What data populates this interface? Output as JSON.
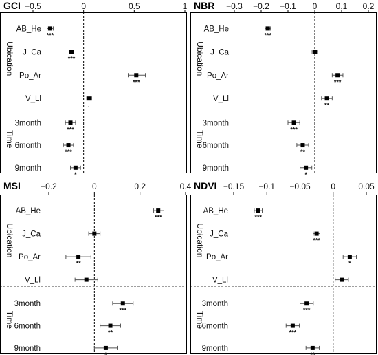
{
  "chart_data": [
    {
      "type": "scatter",
      "title": "GCI",
      "xlim": [
        -0.5,
        1
      ],
      "xticks": [
        -0.5,
        0,
        0.5,
        1
      ],
      "xtick_labels": [
        "−0.5",
        "0",
        "0.5",
        "1"
      ],
      "groups": [
        {
          "label": "Ubication",
          "categories": [
            "AB_He",
            "J_Ca",
            "Po_Ar",
            "V_Ll"
          ]
        },
        {
          "label": "Time",
          "categories": [
            "3month",
            "6month",
            "9month"
          ]
        }
      ],
      "points": [
        {
          "category": "AB_He",
          "estimate": -0.33,
          "ci": [
            -0.36,
            -0.3
          ],
          "sig": "***"
        },
        {
          "category": "J_Ca",
          "estimate": -0.12,
          "ci": [
            -0.14,
            -0.1
          ],
          "sig": "***"
        },
        {
          "category": "Po_Ar",
          "estimate": 0.52,
          "ci": [
            0.44,
            0.61
          ],
          "sig": "***"
        },
        {
          "category": "V_Ll",
          "estimate": 0.05,
          "ci": [
            0.03,
            0.08
          ],
          "sig": "."
        },
        {
          "category": "3month",
          "estimate": -0.13,
          "ci": [
            -0.18,
            -0.08
          ],
          "sig": "***"
        },
        {
          "category": "6month",
          "estimate": -0.15,
          "ci": [
            -0.2,
            -0.1
          ],
          "sig": "***"
        },
        {
          "category": "9month",
          "estimate": -0.08,
          "ci": [
            -0.13,
            -0.03
          ],
          "sig": "*"
        }
      ]
    },
    {
      "type": "scatter",
      "title": "NBR",
      "xlim": [
        -0.3,
        0.2
      ],
      "xticks": [
        -0.3,
        -0.2,
        -0.1,
        0,
        0.1,
        0.2
      ],
      "xtick_labels": [
        "−0.3",
        "−0.2",
        "−0.1",
        "0",
        "0.1",
        "0.2"
      ],
      "groups": [
        {
          "label": "Ubication",
          "categories": [
            "AB_He",
            "J_Ca",
            "Po_Ar",
            "V_Ll"
          ]
        },
        {
          "label": "Time",
          "categories": [
            "3month",
            "6month",
            "9month"
          ]
        }
      ],
      "points": [
        {
          "category": "AB_He",
          "estimate": -0.175,
          "ci": [
            -0.185,
            -0.165
          ],
          "sig": "***"
        },
        {
          "category": "J_Ca",
          "estimate": 0.0,
          "ci": [
            -0.01,
            0.01
          ],
          "sig": ""
        },
        {
          "category": "Po_Ar",
          "estimate": 0.085,
          "ci": [
            0.065,
            0.105
          ],
          "sig": "***"
        },
        {
          "category": "V_Ll",
          "estimate": 0.045,
          "ci": [
            0.025,
            0.065
          ],
          "sig": "**"
        },
        {
          "category": "3month",
          "estimate": -0.078,
          "ci": [
            -0.1,
            -0.056
          ],
          "sig": "***"
        },
        {
          "category": "6month",
          "estimate": -0.045,
          "ci": [
            -0.067,
            -0.023
          ],
          "sig": "**"
        },
        {
          "category": "9month",
          "estimate": -0.033,
          "ci": [
            -0.055,
            -0.011
          ],
          "sig": "*"
        }
      ]
    },
    {
      "type": "scatter",
      "title": "MSI",
      "xlim": [
        -0.2,
        0.4
      ],
      "xticks": [
        -0.2,
        0,
        0.2,
        0.4
      ],
      "xtick_labels": [
        "−0.2",
        "0",
        "0.2",
        "0.4"
      ],
      "groups": [
        {
          "label": "Ubication",
          "categories": [
            "AB_He",
            "J_Ca",
            "Po_Ar",
            "V_Ll"
          ]
        },
        {
          "label": "Time",
          "categories": [
            "3month",
            "6month",
            "9month"
          ]
        }
      ],
      "points": [
        {
          "category": "AB_He",
          "estimate": 0.28,
          "ci": [
            0.26,
            0.305
          ],
          "sig": "***"
        },
        {
          "category": "J_Ca",
          "estimate": 0.0,
          "ci": [
            -0.025,
            0.025
          ],
          "sig": ""
        },
        {
          "category": "Po_Ar",
          "estimate": -0.07,
          "ci": [
            -0.125,
            -0.015
          ],
          "sig": "**"
        },
        {
          "category": "V_Ll",
          "estimate": -0.035,
          "ci": [
            -0.085,
            0.015
          ],
          "sig": ""
        },
        {
          "category": "3month",
          "estimate": 0.125,
          "ci": [
            0.08,
            0.17
          ],
          "sig": "***"
        },
        {
          "category": "6month",
          "estimate": 0.07,
          "ci": [
            0.025,
            0.115
          ],
          "sig": "**"
        },
        {
          "category": "9month",
          "estimate": 0.05,
          "ci": [
            0.0,
            0.1
          ],
          "sig": "*"
        }
      ]
    },
    {
      "type": "scatter",
      "title": "NDVI",
      "xlim": [
        -0.15,
        0.05
      ],
      "xticks": [
        -0.15,
        -0.1,
        -0.05,
        0,
        0.05
      ],
      "xtick_labels": [
        "−0.15",
        "−0.1",
        "−0.05",
        "0",
        "0.05"
      ],
      "groups": [
        {
          "label": "Ubication",
          "categories": [
            "AB_He",
            "J_Ca",
            "Po_Ar",
            "V_Ll"
          ]
        },
        {
          "label": "Time",
          "categories": [
            "3month",
            "6month",
            "9month"
          ]
        }
      ],
      "points": [
        {
          "category": "AB_He",
          "estimate": -0.113,
          "ci": [
            -0.119,
            -0.107
          ],
          "sig": "***"
        },
        {
          "category": "J_Ca",
          "estimate": -0.025,
          "ci": [
            -0.03,
            -0.02
          ],
          "sig": "***"
        },
        {
          "category": "Po_Ar",
          "estimate": 0.025,
          "ci": [
            0.015,
            0.035
          ],
          "sig": "*"
        },
        {
          "category": "V_Ll",
          "estimate": 0.013,
          "ci": [
            0.003,
            0.023
          ],
          "sig": ""
        },
        {
          "category": "3month",
          "estimate": -0.04,
          "ci": [
            -0.05,
            -0.03
          ],
          "sig": "***"
        },
        {
          "category": "6month",
          "estimate": -0.061,
          "ci": [
            -0.071,
            -0.051
          ],
          "sig": "***"
        },
        {
          "category": "9month",
          "estimate": -0.031,
          "ci": [
            -0.041,
            -0.021
          ],
          "sig": "**"
        }
      ]
    }
  ]
}
